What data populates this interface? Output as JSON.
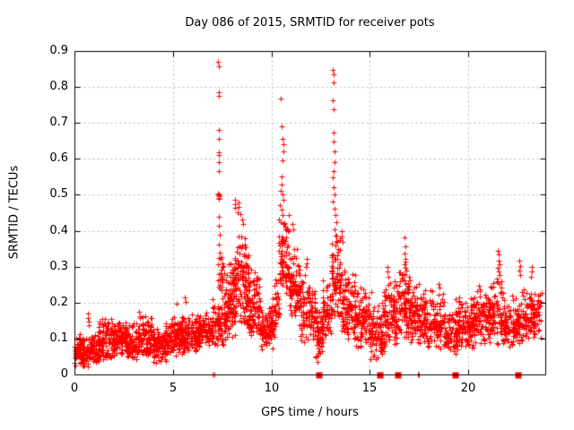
{
  "window": {
    "background": "#ffffff",
    "text_color": "#000000"
  },
  "chart_data": {
    "type": "scatter",
    "title": "Day 086 of 2015, SRMTID for receiver pots",
    "xlabel": "GPS time / hours",
    "ylabel": "SRMTID / TECUs",
    "xlim": [
      0,
      23.9
    ],
    "ylim": [
      0,
      0.9
    ],
    "xtick_values": [
      0,
      5,
      10,
      15,
      20
    ],
    "xtick_labels": [
      "0",
      "5",
      "10",
      "15",
      "20"
    ],
    "ytick_values": [
      0,
      0.1,
      0.2,
      0.3,
      0.4,
      0.5,
      0.6,
      0.7,
      0.8,
      0.9
    ],
    "ytick_labels": [
      "0",
      "0.1",
      "0.2",
      "0.3",
      "0.4",
      "0.5",
      "0.6",
      "0.7",
      "0.8",
      "0.9"
    ],
    "grid": true,
    "grid_color": "#b8b8b8",
    "axis_color": "#000000",
    "legend": false,
    "marker": "plus",
    "marker_color": "#ff0000",
    "series_name": "SRMTID",
    "seed": 8686,
    "peak_points": [
      [
        0.68,
        0.17
      ],
      [
        0.7,
        0.158
      ],
      [
        0.72,
        0.148
      ],
      [
        0.71,
        0.138
      ],
      [
        3.3,
        0.175
      ],
      [
        3.33,
        0.163
      ],
      [
        5.18,
        0.196
      ],
      [
        5.6,
        0.214
      ],
      [
        5.63,
        0.203
      ],
      [
        7.3,
        0.87
      ],
      [
        7.33,
        0.858
      ],
      [
        7.31,
        0.786
      ],
      [
        7.34,
        0.775
      ],
      [
        7.32,
        0.681
      ],
      [
        7.33,
        0.656
      ],
      [
        7.31,
        0.619
      ],
      [
        7.34,
        0.611
      ],
      [
        7.32,
        0.592
      ],
      [
        7.33,
        0.565
      ],
      [
        7.3,
        0.503
      ],
      [
        7.32,
        0.5
      ],
      [
        7.33,
        0.498
      ],
      [
        7.31,
        0.495
      ],
      [
        7.34,
        0.492
      ],
      [
        7.32,
        0.488
      ],
      [
        7.35,
        0.44
      ],
      [
        7.33,
        0.415
      ],
      [
        7.36,
        0.39
      ],
      [
        7.34,
        0.362
      ],
      [
        7.37,
        0.34
      ],
      [
        8.13,
        0.486
      ],
      [
        8.15,
        0.473
      ],
      [
        8.14,
        0.463
      ],
      [
        8.33,
        0.478
      ],
      [
        8.35,
        0.465
      ],
      [
        8.3,
        0.452
      ],
      [
        8.42,
        0.446
      ],
      [
        8.5,
        0.432
      ],
      [
        8.56,
        0.42
      ],
      [
        10.48,
        0.768
      ],
      [
        10.52,
        0.69
      ],
      [
        10.57,
        0.655
      ],
      [
        10.6,
        0.641
      ],
      [
        10.62,
        0.62
      ],
      [
        10.58,
        0.595
      ],
      [
        10.5,
        0.552
      ],
      [
        10.53,
        0.528
      ],
      [
        10.47,
        0.512
      ],
      [
        10.55,
        0.5
      ],
      [
        10.6,
        0.486
      ],
      [
        10.44,
        0.47
      ],
      [
        10.5,
        0.458
      ],
      [
        10.56,
        0.444
      ],
      [
        10.4,
        0.432
      ],
      [
        10.62,
        0.42
      ],
      [
        11.08,
        0.42
      ],
      [
        11.12,
        0.405
      ],
      [
        11.78,
        0.322
      ],
      [
        11.81,
        0.31
      ],
      [
        11.75,
        0.298
      ],
      [
        13.13,
        0.848
      ],
      [
        13.16,
        0.836
      ],
      [
        13.14,
        0.813
      ],
      [
        13.12,
        0.764
      ],
      [
        13.16,
        0.739
      ],
      [
        13.14,
        0.672
      ],
      [
        13.15,
        0.649
      ],
      [
        13.18,
        0.622
      ],
      [
        13.2,
        0.592
      ],
      [
        13.15,
        0.566
      ],
      [
        13.11,
        0.549
      ],
      [
        13.16,
        0.52
      ],
      [
        13.2,
        0.5
      ],
      [
        13.13,
        0.482
      ],
      [
        13.18,
        0.462
      ],
      [
        13.25,
        0.443
      ],
      [
        13.3,
        0.424
      ],
      [
        13.22,
        0.405
      ],
      [
        13.28,
        0.386
      ],
      [
        13.34,
        0.368
      ],
      [
        13.55,
        0.4
      ],
      [
        13.58,
        0.385
      ],
      [
        13.62,
        0.37
      ],
      [
        15.9,
        0.3
      ],
      [
        15.88,
        0.286
      ],
      [
        15.93,
        0.272
      ],
      [
        16.77,
        0.382
      ],
      [
        16.79,
        0.357
      ],
      [
        16.75,
        0.337
      ],
      [
        16.8,
        0.322
      ],
      [
        16.78,
        0.315
      ],
      [
        16.76,
        0.306
      ],
      [
        16.81,
        0.296
      ],
      [
        16.83,
        0.288
      ],
      [
        16.77,
        0.276
      ],
      [
        16.75,
        0.262
      ],
      [
        16.8,
        0.253
      ],
      [
        18.5,
        0.252
      ],
      [
        18.55,
        0.241
      ],
      [
        20.52,
        0.246
      ],
      [
        20.56,
        0.236
      ],
      [
        21.5,
        0.345
      ],
      [
        21.55,
        0.335
      ],
      [
        21.52,
        0.316
      ],
      [
        21.57,
        0.306
      ],
      [
        21.5,
        0.296
      ],
      [
        21.55,
        0.286
      ],
      [
        21.6,
        0.276
      ],
      [
        21.46,
        0.266
      ],
      [
        22.6,
        0.316
      ],
      [
        22.62,
        0.301
      ],
      [
        22.58,
        0.29
      ],
      [
        22.61,
        0.276
      ],
      [
        23.2,
        0.3
      ],
      [
        23.23,
        0.286
      ],
      [
        23.18,
        0.272
      ]
    ],
    "zero_value_marks": {
      "square_clusters_x": [
        12.4,
        15.5,
        16.38,
        19.3,
        22.5
      ],
      "thin_pairs_x": [
        [
          7.0,
          7.08
        ],
        [
          17.42,
          17.5
        ]
      ]
    },
    "background_clusters": [
      [
        0.0,
        0.35,
        45,
        0.02,
        0.13
      ],
      [
        0.3,
        0.75,
        55,
        0.02,
        0.11
      ],
      [
        0.7,
        1.25,
        65,
        0.03,
        0.13
      ],
      [
        1.2,
        2.05,
        110,
        0.04,
        0.16
      ],
      [
        2.0,
        2.65,
        80,
        0.05,
        0.16
      ],
      [
        2.6,
        3.25,
        80,
        0.04,
        0.15
      ],
      [
        3.2,
        4.05,
        110,
        0.05,
        0.17
      ],
      [
        4.0,
        4.65,
        80,
        0.03,
        0.14
      ],
      [
        4.6,
        5.45,
        110,
        0.05,
        0.17
      ],
      [
        5.4,
        6.25,
        110,
        0.06,
        0.19
      ],
      [
        6.2,
        7.05,
        110,
        0.07,
        0.18
      ],
      [
        7.0,
        7.65,
        70,
        0.08,
        0.22
      ],
      [
        7.3,
        7.55,
        25,
        0.2,
        0.36
      ],
      [
        7.6,
        8.15,
        90,
        0.1,
        0.33
      ],
      [
        8.1,
        8.85,
        130,
        0.12,
        0.42
      ],
      [
        8.8,
        9.45,
        90,
        0.1,
        0.3
      ],
      [
        9.4,
        10.15,
        100,
        0.06,
        0.22
      ],
      [
        10.15,
        10.4,
        30,
        0.12,
        0.3
      ],
      [
        10.35,
        10.9,
        80,
        0.22,
        0.46
      ],
      [
        10.85,
        11.45,
        85,
        0.16,
        0.36
      ],
      [
        11.4,
        12.25,
        100,
        0.09,
        0.28
      ],
      [
        12.2,
        12.65,
        60,
        0.03,
        0.2
      ],
      [
        12.6,
        13.05,
        60,
        0.1,
        0.28
      ],
      [
        13.05,
        13.5,
        80,
        0.15,
        0.42
      ],
      [
        13.5,
        14.25,
        100,
        0.1,
        0.3
      ],
      [
        14.2,
        15.05,
        100,
        0.07,
        0.26
      ],
      [
        15.0,
        15.75,
        90,
        0.03,
        0.22
      ],
      [
        15.7,
        16.45,
        95,
        0.08,
        0.28
      ],
      [
        16.4,
        17.1,
        95,
        0.1,
        0.3
      ],
      [
        17.05,
        17.8,
        95,
        0.08,
        0.28
      ],
      [
        17.75,
        18.8,
        120,
        0.07,
        0.24
      ],
      [
        18.75,
        19.55,
        95,
        0.05,
        0.22
      ],
      [
        19.5,
        20.3,
        95,
        0.07,
        0.23
      ],
      [
        20.25,
        21.1,
        100,
        0.08,
        0.25
      ],
      [
        21.05,
        21.8,
        90,
        0.08,
        0.28
      ],
      [
        21.75,
        22.6,
        95,
        0.07,
        0.23
      ],
      [
        22.55,
        23.35,
        90,
        0.08,
        0.26
      ],
      [
        23.3,
        23.7,
        35,
        0.1,
        0.24
      ]
    ]
  }
}
